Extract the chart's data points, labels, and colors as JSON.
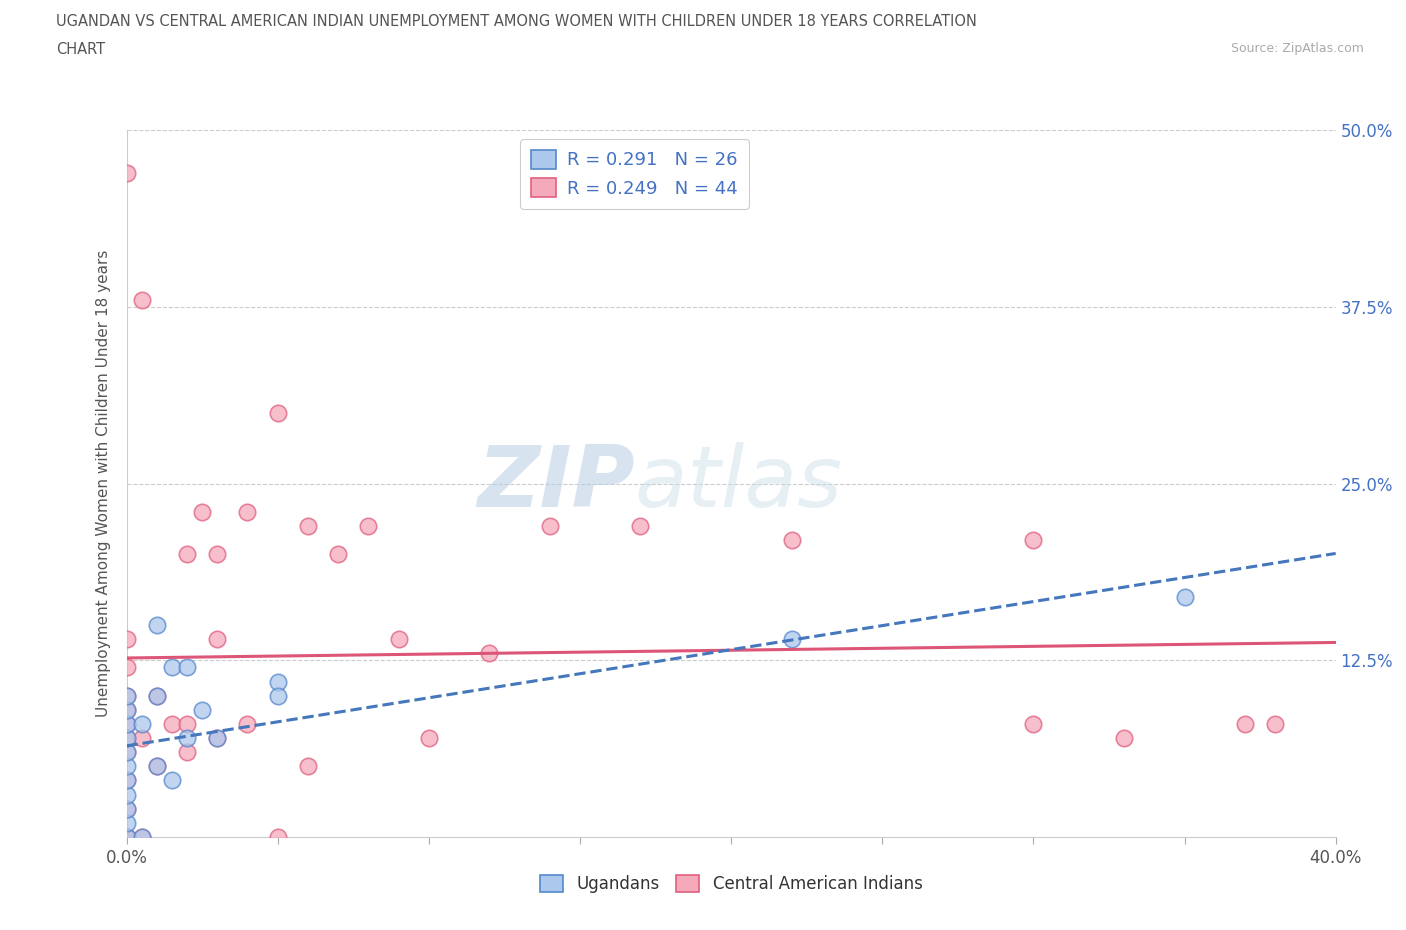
{
  "title_line1": "UGANDAN VS CENTRAL AMERICAN INDIAN UNEMPLOYMENT AMONG WOMEN WITH CHILDREN UNDER 18 YEARS CORRELATION",
  "title_line2": "CHART",
  "source": "Source: ZipAtlas.com",
  "ylabel": "Unemployment Among Women with Children Under 18 years",
  "watermark": "ZIPatlas",
  "ugandan_R": 0.291,
  "ugandan_N": 26,
  "central_american_R": 0.249,
  "central_american_N": 44,
  "ugandan_color": "#adc8ed",
  "ugandan_edge_color": "#5588cc",
  "ugandan_line_color": "#4477bb",
  "central_american_color": "#f5aabb",
  "central_american_edge_color": "#e06080",
  "central_american_line_color": "#dd5577",
  "xlim": [
    0.0,
    0.4
  ],
  "ylim": [
    0.0,
    0.5
  ],
  "xtick_positions": [
    0.0,
    0.05,
    0.1,
    0.15,
    0.2,
    0.25,
    0.3,
    0.35,
    0.4
  ],
  "xtick_labels_shown": [
    "0.0%",
    "",
    "",
    "",
    "",
    "",
    "",
    "",
    "40.0%"
  ],
  "yticks": [
    0.0,
    0.125,
    0.25,
    0.375,
    0.5
  ],
  "ytick_labels": [
    "",
    "12.5%",
    "25.0%",
    "37.5%",
    "50.0%"
  ],
  "ugandan_x": [
    0.0,
    0.0,
    0.0,
    0.0,
    0.0,
    0.0,
    0.0,
    0.0,
    0.0,
    0.0,
    0.0,
    0.005,
    0.005,
    0.01,
    0.01,
    0.01,
    0.015,
    0.015,
    0.02,
    0.02,
    0.025,
    0.03,
    0.05,
    0.05,
    0.22,
    0.35
  ],
  "ugandan_y": [
    0.0,
    0.01,
    0.02,
    0.03,
    0.04,
    0.05,
    0.06,
    0.07,
    0.08,
    0.09,
    0.1,
    0.0,
    0.08,
    0.05,
    0.1,
    0.15,
    0.04,
    0.12,
    0.07,
    0.12,
    0.09,
    0.07,
    0.11,
    0.1,
    0.14,
    0.17
  ],
  "central_american_x": [
    0.0,
    0.0,
    0.0,
    0.0,
    0.0,
    0.0,
    0.0,
    0.0,
    0.0,
    0.0,
    0.0,
    0.0,
    0.005,
    0.005,
    0.005,
    0.01,
    0.01,
    0.015,
    0.02,
    0.02,
    0.02,
    0.025,
    0.03,
    0.03,
    0.03,
    0.04,
    0.04,
    0.05,
    0.05,
    0.06,
    0.06,
    0.07,
    0.08,
    0.09,
    0.1,
    0.12,
    0.14,
    0.17,
    0.22,
    0.3,
    0.3,
    0.33,
    0.37,
    0.38
  ],
  "central_american_y": [
    0.0,
    0.0,
    0.02,
    0.04,
    0.06,
    0.07,
    0.08,
    0.09,
    0.1,
    0.12,
    0.14,
    0.47,
    0.0,
    0.07,
    0.38,
    0.05,
    0.1,
    0.08,
    0.06,
    0.08,
    0.2,
    0.23,
    0.07,
    0.14,
    0.2,
    0.08,
    0.23,
    0.0,
    0.3,
    0.05,
    0.22,
    0.2,
    0.22,
    0.14,
    0.07,
    0.13,
    0.22,
    0.22,
    0.21,
    0.08,
    0.21,
    0.07,
    0.08,
    0.08
  ]
}
